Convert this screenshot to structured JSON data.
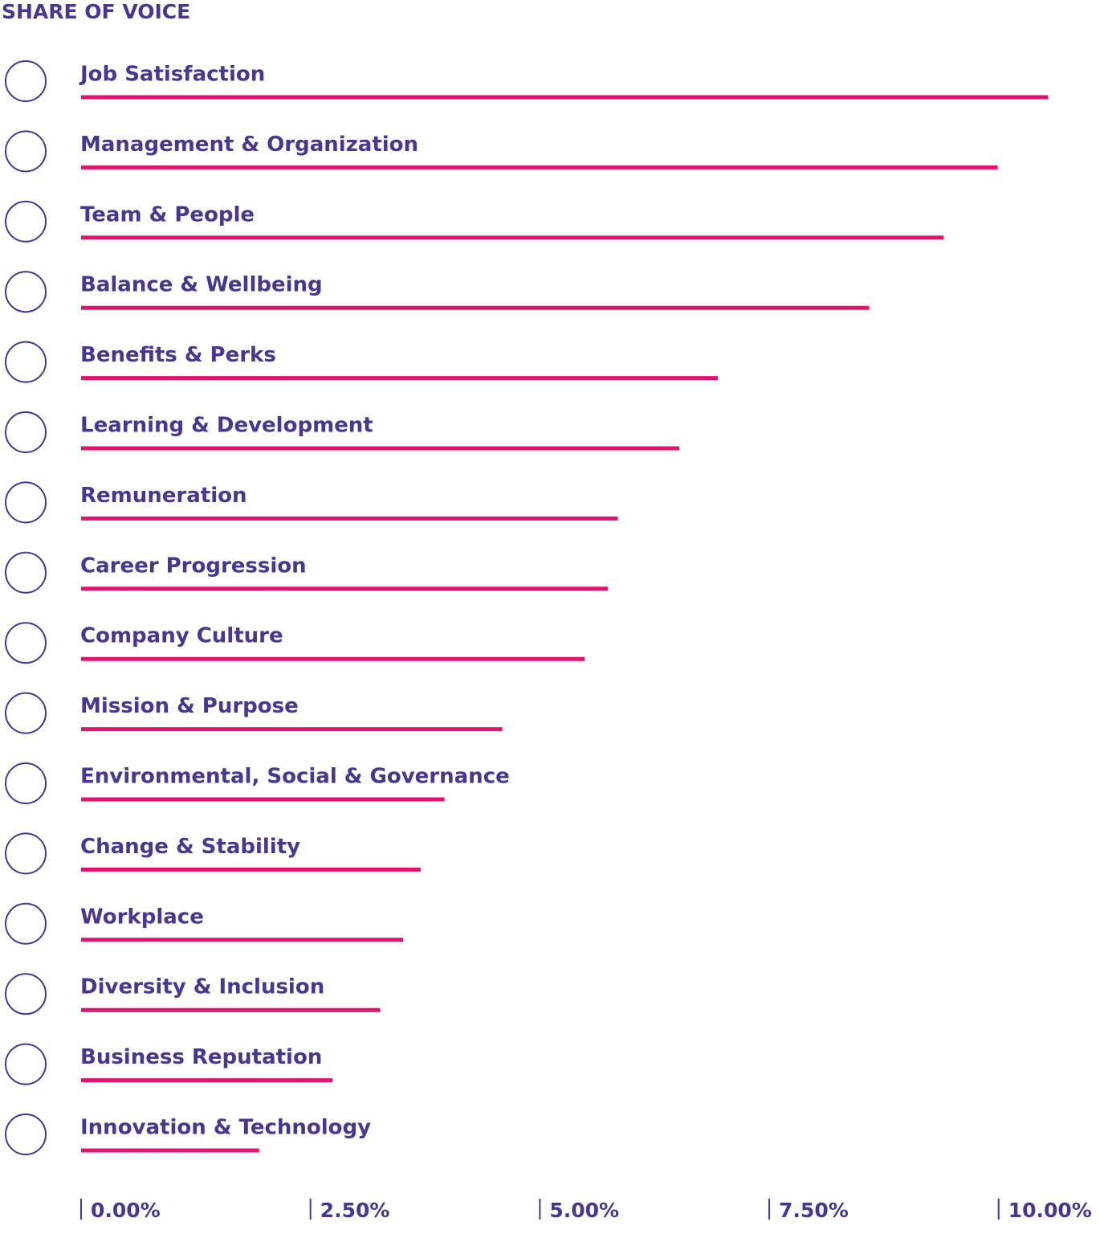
{
  "chart_data": {
    "type": "bar",
    "orientation": "horizontal",
    "title": "SHARE OF VOICE",
    "categories": [
      "Job Satisfaction",
      "Management & Organization",
      "Team & People",
      "Balance & Wellbeing",
      "Benefits & Perks",
      "Learning & Development",
      "Remuneration",
      "Career Progression",
      "Company Culture",
      "Mission & Purpose",
      "Environmental, Social & Governance",
      "Change & Stability",
      "Workplace",
      "Diversity & Inclusion",
      "Business Reputation",
      "Innovation & Technology"
    ],
    "values": [
      10.54,
      9.99,
      9.4,
      8.59,
      6.94,
      6.52,
      5.85,
      5.74,
      5.49,
      4.59,
      3.96,
      3.7,
      3.51,
      3.26,
      2.74,
      1.94
    ],
    "color": "#e0146e",
    "xlim": [
      0,
      11
    ],
    "xticks": [
      {
        "value": 0,
        "label": "0.00%"
      },
      {
        "value": 2.5,
        "label": "2.50%"
      },
      {
        "value": 5,
        "label": "5.00%"
      },
      {
        "value": 7.5,
        "label": "7.50%"
      },
      {
        "value": 10,
        "label": "10.00%"
      }
    ]
  }
}
